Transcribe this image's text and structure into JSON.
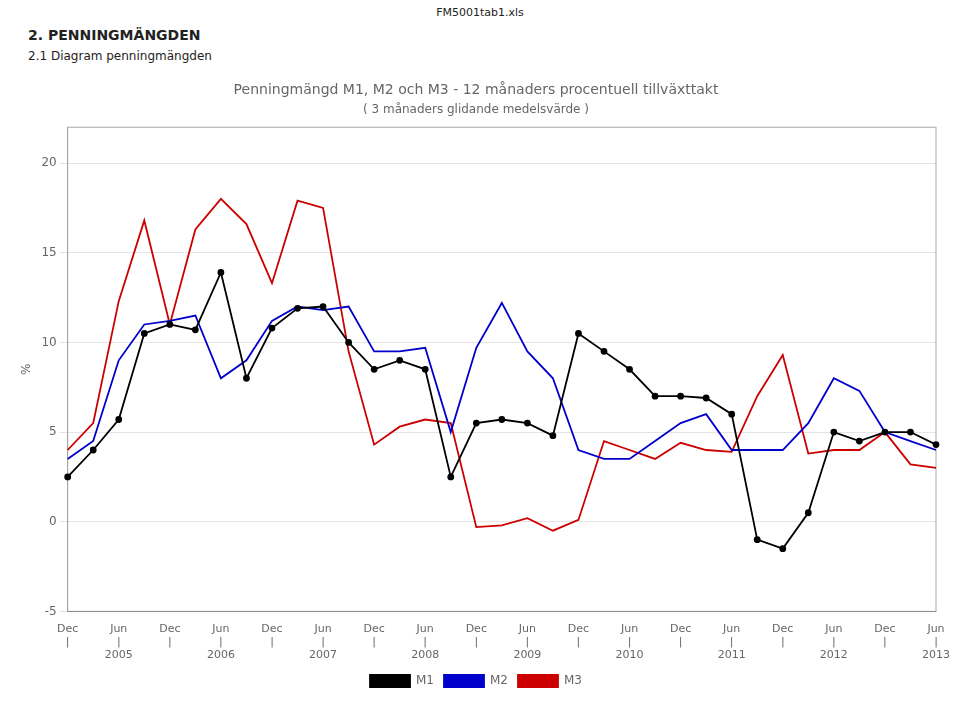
{
  "chart_data": {
    "type": "line",
    "title": "Penningmängd M1, M2 och M3 - 12 månaders procentuell tillväxttakt",
    "subtitle": "( 3 månaders glidande medelsvärde )",
    "annotations": [
      "FM5001tab1.xls",
      "2.  PENNINGMÄNGDEN",
      "2.1 Diagram penningmängden"
    ],
    "y_label": "%",
    "categories": [
      "Dec\n|",
      null,
      "Jun\n|\n2005",
      null,
      "Dec\n|",
      null,
      "Jun\n|\n2006",
      null,
      "Dec\n|",
      null,
      "Jun\n|\n2007",
      null,
      "Dec\n|",
      null,
      "Jun\n|\n2008",
      null,
      "Dec\n|",
      null,
      "Jun\n|\n2009",
      null,
      "Dec\n|",
      null,
      "Jun\n|\n2010",
      null,
      "Dec\n|",
      null,
      "Jun\n|\n2011",
      null,
      "Dec\n|",
      null,
      "Jun\n|\n2012",
      null,
      "Dec\n|",
      null,
      "Jun\n|\n2013"
    ],
    "series": [
      {
        "name": "M1",
        "color": "#000000",
        "marker": "o",
        "values": [
          2.5,
          4.0,
          5.7,
          10.5,
          11.0,
          10.7,
          13.9,
          8.0,
          10.8,
          11.9,
          12.0,
          10.0,
          8.5,
          9.0,
          8.5,
          2.5,
          5.5,
          5.7,
          5.5,
          4.8,
          10.5,
          9.5,
          8.5,
          7.0,
          7.0,
          6.9,
          6.0,
          -1.0,
          -1.5,
          0.5,
          5.0,
          4.5,
          5.0,
          5.0,
          4.3
        ]
      },
      {
        "name": "M2",
        "color": "#0000cc",
        "marker": "none",
        "values": [
          3.5,
          4.5,
          9.0,
          11.0,
          11.2,
          11.5,
          8.0,
          9.0,
          11.2,
          12.0,
          11.8,
          12.0,
          9.5,
          9.5,
          9.7,
          5.0,
          9.7,
          12.2,
          9.5,
          8.0,
          4.0,
          3.5,
          3.5,
          4.5,
          5.5,
          6.0,
          4.0,
          4.0,
          4.0,
          5.5,
          8.0,
          7.3,
          5.0,
          4.5,
          4.0
        ]
      },
      {
        "name": "M3",
        "color": "#cc0000",
        "marker": "none",
        "values": [
          4.0,
          5.5,
          12.3,
          16.8,
          11.0,
          16.3,
          18.0,
          16.6,
          13.3,
          17.9,
          17.5,
          9.5,
          4.3,
          5.3,
          5.7,
          5.5,
          -0.3,
          -0.2,
          0.2,
          -0.5,
          0.1,
          4.5,
          4.0,
          3.5,
          4.4,
          4.0,
          3.9,
          7.0,
          9.3,
          3.8,
          4.0,
          4.0,
          5.0,
          3.2,
          3.0
        ]
      }
    ],
    "ylim": [
      -5,
      22
    ],
    "yticks": [
      -5,
      0,
      5,
      10,
      15,
      20
    ],
    "grid": true,
    "legend": "bottom"
  }
}
